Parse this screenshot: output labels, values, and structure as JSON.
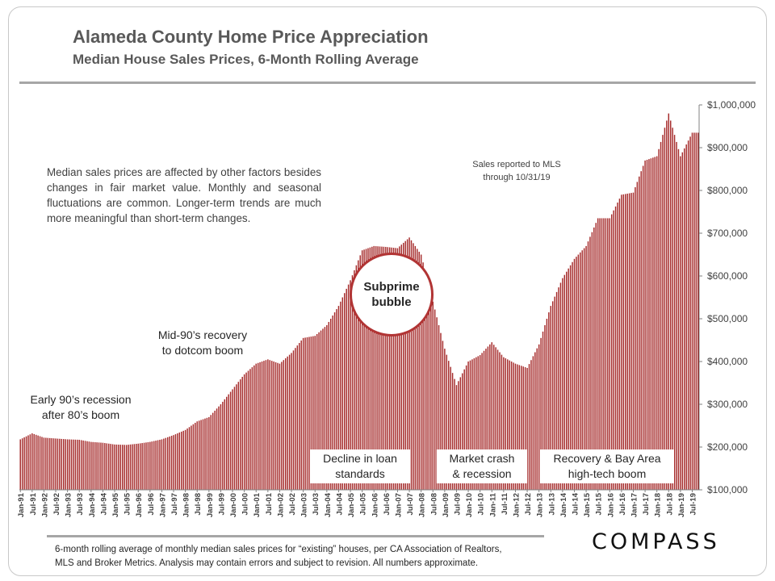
{
  "header": {
    "title": "Alameda County Home Price Appreciation",
    "subtitle": "Median House Sales Prices, 6-Month Rolling Average"
  },
  "notes": {
    "disclaimer": "Median sales prices are affected by other factors besides changes in fair market value. Monthly and seasonal fluctuations are common. Longer-term trends are much more meaningful than short-term changes.",
    "mls_line1": "Sales reported to MLS",
    "mls_line2": "through 10/31/19"
  },
  "annotations": {
    "early90s_line1": "Early 90’s recession",
    "early90s_line2": "after 80’s boom",
    "mid90s_line1": "Mid-90’s recovery",
    "mid90s_line2": "to dotcom boom",
    "subprime_line1": "Subprime",
    "subprime_line2": "bubble",
    "decline_line1": "Decline in loan",
    "decline_line2": "standards",
    "crash_line1": "Market crash",
    "crash_line2": "& recession",
    "recovery_line1": "Recovery & Bay Area",
    "recovery_line2": "high-tech boom"
  },
  "footer": {
    "line1": "6-month rolling average of monthly median sales prices for “existing” houses, per CA Association of Realtors,",
    "line2": "MLS and Broker Metrics.  Analysis may contain errors and subject to revision. All numbers approximate.",
    "brand": "COMPASS"
  },
  "colors": {
    "bar": "#a52a2a",
    "axis": "#808080",
    "text": "#404040"
  },
  "chart_data": {
    "type": "bar",
    "x_start": "Jan-91",
    "x_end": "Oct-19",
    "x_tick_labels": [
      "Jan-91",
      "Jul-91",
      "Jan-92",
      "Jul-92",
      "Jan-93",
      "Jul-93",
      "Jan-94",
      "Jul-94",
      "Jan-95",
      "Jul-95",
      "Jan-96",
      "Jul-96",
      "Jan-97",
      "Jul-97",
      "Jan-98",
      "Jul-98",
      "Jan-99",
      "Jul-99",
      "Jan-00",
      "Jul-00",
      "Jan-01",
      "Jul-01",
      "Jan-02",
      "Jul-02",
      "Jan-03",
      "Jul-03",
      "Jan-04",
      "Jul-04",
      "Jan-05",
      "Jul-05",
      "Jan-06",
      "Jul-06",
      "Jan-07",
      "Jul-07",
      "Jan-08",
      "Jul-08",
      "Jan-09",
      "Jul-09",
      "Jan-10",
      "Jul-10",
      "Jan-11",
      "Jul-11",
      "Jan-12",
      "Jul-12",
      "Jan-13",
      "Jul-13",
      "Jan-14",
      "Jul-14",
      "Jan-15",
      "Jul-15",
      "Jan-16",
      "Jul-16",
      "Jan-17",
      "Jul-17",
      "Jan-18",
      "Jul-18",
      "Jan-19",
      "Jul-19"
    ],
    "y_ticks": [
      "$100,000",
      "$200,000",
      "$300,000",
      "$400,000",
      "$500,000",
      "$600,000",
      "$700,000",
      "$800,000",
      "$900,000",
      "$1,000,000"
    ],
    "ylim": [
      100000,
      1000000
    ],
    "series": [
      {
        "anchors": [
          {
            "date": "Jan-91",
            "value": 218000
          },
          {
            "date": "Jul-91",
            "value": 232000
          },
          {
            "date": "Jan-92",
            "value": 222000
          },
          {
            "date": "Jul-92",
            "value": 220000
          },
          {
            "date": "Jan-93",
            "value": 218000
          },
          {
            "date": "Jul-93",
            "value": 217000
          },
          {
            "date": "Jan-94",
            "value": 212000
          },
          {
            "date": "Jul-94",
            "value": 210000
          },
          {
            "date": "Jan-95",
            "value": 206000
          },
          {
            "date": "Jul-95",
            "value": 205000
          },
          {
            "date": "Jan-96",
            "value": 208000
          },
          {
            "date": "Jul-96",
            "value": 212000
          },
          {
            "date": "Jan-97",
            "value": 218000
          },
          {
            "date": "Jul-97",
            "value": 228000
          },
          {
            "date": "Jan-98",
            "value": 240000
          },
          {
            "date": "Jul-98",
            "value": 260000
          },
          {
            "date": "Jan-99",
            "value": 270000
          },
          {
            "date": "Jul-99",
            "value": 300000
          },
          {
            "date": "Jan-00",
            "value": 335000
          },
          {
            "date": "Jul-00",
            "value": 370000
          },
          {
            "date": "Jan-01",
            "value": 395000
          },
          {
            "date": "Jul-01",
            "value": 405000
          },
          {
            "date": "Jan-02",
            "value": 395000
          },
          {
            "date": "Jul-02",
            "value": 420000
          },
          {
            "date": "Jan-03",
            "value": 455000
          },
          {
            "date": "Jul-03",
            "value": 460000
          },
          {
            "date": "Jan-04",
            "value": 485000
          },
          {
            "date": "Jul-04",
            "value": 530000
          },
          {
            "date": "Jan-05",
            "value": 590000
          },
          {
            "date": "Jul-05",
            "value": 660000
          },
          {
            "date": "Jan-06",
            "value": 670000
          },
          {
            "date": "Jul-06",
            "value": 668000
          },
          {
            "date": "Jan-07",
            "value": 665000
          },
          {
            "date": "Jul-07",
            "value": 690000
          },
          {
            "date": "Jan-08",
            "value": 650000
          },
          {
            "date": "Jul-08",
            "value": 540000
          },
          {
            "date": "Jan-09",
            "value": 430000
          },
          {
            "date": "Jul-09",
            "value": 345000
          },
          {
            "date": "Jan-10",
            "value": 400000
          },
          {
            "date": "Jul-10",
            "value": 415000
          },
          {
            "date": "Jan-11",
            "value": 445000
          },
          {
            "date": "Jul-11",
            "value": 410000
          },
          {
            "date": "Jan-12",
            "value": 395000
          },
          {
            "date": "Jul-12",
            "value": 385000
          },
          {
            "date": "Jan-13",
            "value": 440000
          },
          {
            "date": "Jul-13",
            "value": 530000
          },
          {
            "date": "Jan-14",
            "value": 595000
          },
          {
            "date": "Jul-14",
            "value": 640000
          },
          {
            "date": "Jan-15",
            "value": 670000
          },
          {
            "date": "Jul-15",
            "value": 735000
          },
          {
            "date": "Jan-16",
            "value": 735000
          },
          {
            "date": "Jul-16",
            "value": 790000
          },
          {
            "date": "Jan-17",
            "value": 795000
          },
          {
            "date": "Jul-17",
            "value": 870000
          },
          {
            "date": "Jan-18",
            "value": 880000
          },
          {
            "date": "Jul-18",
            "value": 980000
          },
          {
            "date": "Jan-19",
            "value": 880000
          },
          {
            "date": "Jul-19",
            "value": 935000
          },
          {
            "date": "Oct-19",
            "value": 935000
          }
        ]
      }
    ]
  }
}
